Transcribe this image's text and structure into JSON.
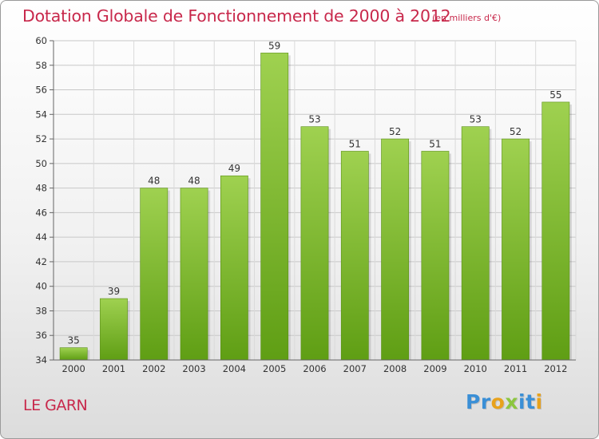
{
  "header": {
    "title": "Dotation Globale de Fonctionnement de 2000 à 2012",
    "unit": "(en milliers d'€)"
  },
  "footer": {
    "commune": "LE GARN",
    "logo_letters": [
      "P",
      "r",
      "o",
      "x",
      "i",
      "t",
      "i"
    ],
    "logo_colors": [
      "#3a8fd6",
      "#3a8fd6",
      "#e8a21c",
      "#8cc63f",
      "#3a8fd6",
      "#3a8fd6",
      "#e8a21c"
    ]
  },
  "colors": {
    "accent": "#c8284b",
    "bar_top": "#9fd150",
    "bar_bottom": "#5f9e14",
    "grid": "#c8c8c8"
  },
  "chart_data": {
    "type": "bar",
    "categories": [
      "2000",
      "2001",
      "2002",
      "2003",
      "2004",
      "2005",
      "2006",
      "2007",
      "2008",
      "2009",
      "2010",
      "2011",
      "2012"
    ],
    "values": [
      35,
      39,
      48,
      48,
      49,
      59,
      53,
      51,
      52,
      51,
      53,
      52,
      55
    ],
    "value_labels": [
      "35",
      "39",
      "48",
      "48",
      "49",
      "59",
      "53",
      "51",
      "52",
      "51",
      "53",
      "52",
      "55"
    ],
    "title": "Dotation Globale de Fonctionnement de 2000 à 2012",
    "xlabel": "",
    "ylabel": "",
    "ylim": [
      34,
      60
    ],
    "yticks": [
      34,
      36,
      38,
      40,
      42,
      44,
      46,
      48,
      50,
      52,
      54,
      56,
      58,
      60
    ],
    "grid": true,
    "legend": "none"
  }
}
